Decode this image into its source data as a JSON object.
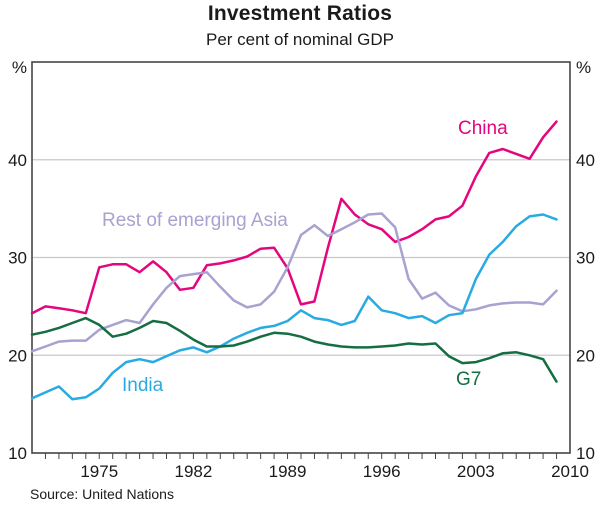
{
  "header": {
    "title": "Investment Ratios",
    "subtitle": "Per cent of nominal GDP"
  },
  "footer": {
    "source": "Source: United Nations"
  },
  "chart_data": {
    "type": "line",
    "title": "Investment Ratios",
    "subtitle": "Per cent of nominal GDP",
    "source": "Source: United Nations",
    "unit_left": "%",
    "unit_right": "%",
    "xlim": [
      1970,
      2010
    ],
    "ylim": [
      10,
      50
    ],
    "gridlines": [
      20,
      30,
      40
    ],
    "y_tick_labels": [
      40,
      30,
      20,
      10
    ],
    "x_tick_labels": [
      1975,
      1982,
      1989,
      1996,
      2003,
      2010
    ],
    "x": [
      1970,
      1971,
      1972,
      1973,
      1974,
      1975,
      1976,
      1977,
      1978,
      1979,
      1980,
      1981,
      1982,
      1983,
      1984,
      1985,
      1986,
      1987,
      1988,
      1989,
      1990,
      1991,
      1992,
      1993,
      1994,
      1995,
      1996,
      1997,
      1998,
      1999,
      2000,
      2001,
      2002,
      2003,
      2004,
      2005,
      2006,
      2007,
      2008,
      2009
    ],
    "series": [
      {
        "name": "China",
        "color": "#e3067e",
        "values": [
          24.3,
          25.0,
          24.8,
          24.6,
          24.3,
          29.0,
          29.3,
          29.3,
          28.5,
          29.6,
          28.5,
          26.7,
          26.9,
          29.2,
          29.4,
          29.7,
          30.1,
          30.9,
          31.0,
          28.9,
          25.2,
          25.5,
          31.0,
          36.0,
          34.4,
          33.4,
          32.9,
          31.6,
          32.1,
          32.9,
          33.9,
          34.2,
          35.3,
          38.3,
          40.7,
          41.1,
          40.6,
          40.1,
          42.3,
          43.9
        ]
      },
      {
        "name": "Rest of emerging Asia",
        "color": "#a7a2d0",
        "values": [
          20.4,
          20.9,
          21.4,
          21.5,
          21.5,
          22.6,
          23.1,
          23.6,
          23.3,
          25.2,
          26.9,
          28.1,
          28.3,
          28.5,
          27.0,
          25.6,
          24.9,
          25.2,
          26.5,
          29.0,
          32.3,
          33.3,
          32.2,
          32.9,
          33.6,
          34.4,
          34.5,
          33.1,
          27.8,
          25.8,
          26.4,
          25.1,
          24.5,
          24.7,
          25.1,
          25.3,
          25.4,
          25.4,
          25.2,
          26.6
        ]
      },
      {
        "name": "India",
        "color": "#29abe2",
        "values": [
          15.6,
          16.2,
          16.8,
          15.5,
          15.7,
          16.6,
          18.2,
          19.3,
          19.6,
          19.3,
          19.9,
          20.5,
          20.8,
          20.3,
          20.9,
          21.7,
          22.3,
          22.8,
          23.0,
          23.5,
          24.6,
          23.8,
          23.6,
          23.1,
          23.5,
          26.0,
          24.6,
          24.3,
          23.8,
          24.0,
          23.3,
          24.1,
          24.3,
          27.8,
          30.3,
          31.6,
          33.2,
          34.2,
          34.4,
          33.9
        ]
      },
      {
        "name": "G7",
        "color": "#146e42",
        "values": [
          22.1,
          22.4,
          22.8,
          23.3,
          23.8,
          23.1,
          21.9,
          22.2,
          22.8,
          23.5,
          23.3,
          22.5,
          21.6,
          20.9,
          20.9,
          21.0,
          21.4,
          21.9,
          22.3,
          22.2,
          21.9,
          21.4,
          21.1,
          20.9,
          20.8,
          20.8,
          20.9,
          21.0,
          21.2,
          21.1,
          21.2,
          19.9,
          19.2,
          19.3,
          19.7,
          20.2,
          20.3,
          20.0,
          19.6,
          17.3
        ]
      }
    ],
    "style": {
      "grid_color": "#c9c9cb",
      "axis_color": "#454547",
      "text_color": "#1a1a1c"
    }
  }
}
